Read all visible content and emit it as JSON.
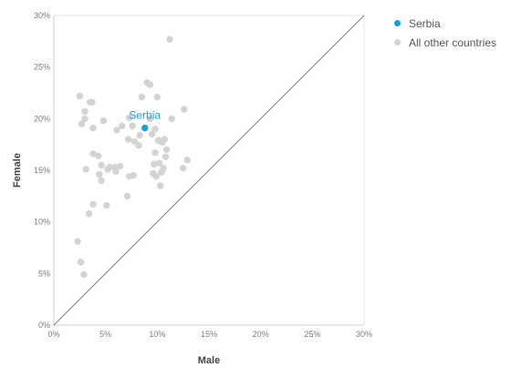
{
  "chart_data": {
    "type": "scatter",
    "xlabel": "Male",
    "ylabel": "Female",
    "xlim": [
      0,
      30
    ],
    "ylim": [
      0,
      30
    ],
    "x_ticks": [
      "0%",
      "5%",
      "10%",
      "15%",
      "20%",
      "25%",
      "30%"
    ],
    "y_ticks": [
      "0%",
      "5%",
      "10%",
      "15%",
      "20%",
      "25%",
      "30%"
    ],
    "reference_line": "y = x",
    "grid": false,
    "legend_position": "top-right",
    "series": [
      {
        "name": "Serbia",
        "color": "#1b9fd6",
        "label": "Serbia",
        "points": [
          [
            8.8,
            19.1
          ]
        ]
      },
      {
        "name": "All other countries",
        "color": "#d3d3d3",
        "points": [
          [
            2.5,
            22.2
          ],
          [
            2.7,
            19.5
          ],
          [
            3.0,
            20.7
          ],
          [
            3.0,
            20.0
          ],
          [
            3.5,
            21.6
          ],
          [
            3.7,
            21.6
          ],
          [
            3.8,
            19.1
          ],
          [
            4.8,
            19.8
          ],
          [
            2.3,
            8.1
          ],
          [
            2.6,
            6.1
          ],
          [
            2.9,
            4.9
          ],
          [
            3.1,
            15.1
          ],
          [
            3.4,
            10.8
          ],
          [
            3.8,
            11.7
          ],
          [
            3.8,
            16.6
          ],
          [
            4.3,
            16.4
          ],
          [
            4.4,
            14.6
          ],
          [
            4.6,
            14.0
          ],
          [
            4.6,
            15.5
          ],
          [
            5.1,
            11.6
          ],
          [
            5.2,
            15.1
          ],
          [
            5.4,
            15.3
          ],
          [
            5.9,
            15.3
          ],
          [
            6.0,
            14.9
          ],
          [
            6.1,
            18.9
          ],
          [
            6.4,
            15.4
          ],
          [
            6.6,
            19.3
          ],
          [
            7.1,
            12.5
          ],
          [
            7.2,
            18.0
          ],
          [
            7.3,
            14.4
          ],
          [
            7.3,
            20.1
          ],
          [
            7.6,
            19.3
          ],
          [
            7.7,
            14.5
          ],
          [
            7.8,
            17.8
          ],
          [
            8.2,
            17.4
          ],
          [
            8.3,
            18.4
          ],
          [
            8.5,
            22.1
          ],
          [
            9.0,
            23.5
          ],
          [
            9.3,
            23.3
          ],
          [
            9.3,
            20.0
          ],
          [
            9.5,
            18.5
          ],
          [
            9.6,
            14.7
          ],
          [
            9.7,
            15.6
          ],
          [
            9.8,
            16.7
          ],
          [
            9.8,
            19.0
          ],
          [
            9.9,
            14.4
          ],
          [
            10.0,
            22.1
          ],
          [
            10.1,
            17.9
          ],
          [
            10.2,
            15.7
          ],
          [
            10.3,
            13.5
          ],
          [
            10.4,
            14.8
          ],
          [
            10.5,
            17.7
          ],
          [
            10.6,
            15.2
          ],
          [
            10.7,
            18.0
          ],
          [
            10.8,
            16.3
          ],
          [
            10.9,
            17.0
          ],
          [
            11.2,
            27.7
          ],
          [
            11.4,
            20.0
          ],
          [
            12.5,
            15.2
          ],
          [
            12.6,
            20.9
          ],
          [
            12.9,
            16.0
          ]
        ]
      }
    ]
  }
}
